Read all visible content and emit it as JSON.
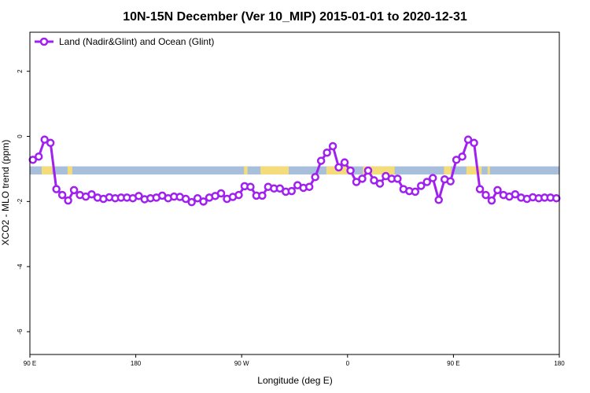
{
  "chart_data": {
    "type": "line",
    "title": "10N-15N December (Ver 10_MIP)   2015-01-01 to 2020-12-31",
    "xlabel": "Longitude (deg E)",
    "ylabel": "XCO2 - MLO trend (ppm)",
    "xlim": [
      90,
      540
    ],
    "ylim": [
      -6.7,
      3.2
    ],
    "xticks": [
      {
        "value": 90,
        "label": "90 E"
      },
      {
        "value": 180,
        "label": "180"
      },
      {
        "value": 270,
        "label": "90 W"
      },
      {
        "value": 360,
        "label": "0"
      },
      {
        "value": 450,
        "label": "90 E"
      },
      {
        "value": 540,
        "label": "180"
      }
    ],
    "yticks": [
      {
        "value": 2,
        "label": "2"
      },
      {
        "value": 0,
        "label": "0"
      },
      {
        "value": -2,
        "label": "-2"
      },
      {
        "value": -4,
        "label": "-4"
      },
      {
        "value": -6,
        "label": "-6"
      }
    ],
    "legend": {
      "position": "top-left",
      "entries": [
        "Land (Nadir&Glint) and Ocean (Glint)"
      ]
    },
    "band": {
      "y_top": -0.92,
      "y_bottom": -1.17,
      "ocean_color": "#a8bfdc",
      "land_color": "#f5dc7a"
    },
    "land_segments": [
      [
        100,
        109
      ],
      [
        122,
        126
      ],
      [
        272,
        275
      ],
      [
        286,
        310
      ],
      [
        342,
        362
      ],
      [
        373,
        400
      ],
      [
        442,
        448
      ],
      [
        461,
        474
      ],
      [
        479,
        481
      ]
    ],
    "series": [
      {
        "name": "Land (Nadir&Glint) and Ocean (Glint)",
        "color": "#a020f0",
        "x": [
          92.5,
          97.5,
          102.5,
          107.5,
          112.5,
          117.5,
          122.5,
          127.5,
          132.5,
          137.5,
          142.5,
          147.5,
          152.5,
          157.5,
          162.5,
          167.5,
          172.5,
          177.5,
          182.5,
          187.5,
          192.5,
          197.5,
          202.5,
          207.5,
          212.5,
          217.5,
          222.5,
          227.5,
          232.5,
          237.5,
          242.5,
          247.5,
          252.5,
          257.5,
          262.5,
          267.5,
          272.5,
          277.5,
          282.5,
          287.5,
          292.5,
          297.5,
          302.5,
          307.5,
          312.5,
          317.5,
          322.5,
          327.5,
          332.5,
          337.5,
          342.5,
          347.5,
          352.5,
          357.5,
          362.5,
          367.5,
          372.5,
          377.5,
          382.5,
          387.5,
          392.5,
          397.5,
          402.5,
          407.5,
          412.5,
          417.5,
          422.5,
          427.5,
          432.5,
          437.5,
          442.5,
          447.5,
          452.5,
          457.5,
          462.5,
          467.5,
          472.5,
          477.5,
          482.5,
          487.5,
          492.5,
          497.5,
          502.5,
          507.5,
          512.5,
          517.5,
          522.5,
          527.5,
          532.5,
          537.5
        ],
        "values": [
          -0.72,
          -0.62,
          -0.1,
          -0.2,
          -1.62,
          -1.8,
          -1.97,
          -1.65,
          -1.8,
          -1.85,
          -1.78,
          -1.88,
          -1.92,
          -1.87,
          -1.9,
          -1.88,
          -1.88,
          -1.9,
          -1.83,
          -1.93,
          -1.9,
          -1.88,
          -1.82,
          -1.9,
          -1.85,
          -1.86,
          -1.92,
          -2.02,
          -1.9,
          -2.0,
          -1.88,
          -1.83,
          -1.75,
          -1.92,
          -1.86,
          -1.8,
          -1.53,
          -1.55,
          -1.82,
          -1.82,
          -1.55,
          -1.6,
          -1.6,
          -1.7,
          -1.68,
          -1.5,
          -1.58,
          -1.55,
          -1.25,
          -0.75,
          -0.5,
          -0.3,
          -0.95,
          -0.8,
          -1.05,
          -1.4,
          -1.3,
          -1.05,
          -1.35,
          -1.45,
          -1.22,
          -1.3,
          -1.3,
          -1.62,
          -1.68,
          -1.7,
          -1.52,
          -1.4,
          -1.28,
          -1.95,
          -1.32,
          -1.38,
          -0.72,
          -0.62,
          -0.1,
          -0.2,
          -1.62,
          -1.8,
          -1.97,
          -1.65,
          -1.8,
          -1.85,
          -1.78,
          -1.88,
          -1.92,
          -1.87,
          -1.9,
          -1.88,
          -1.88,
          -1.9
        ]
      }
    ]
  }
}
